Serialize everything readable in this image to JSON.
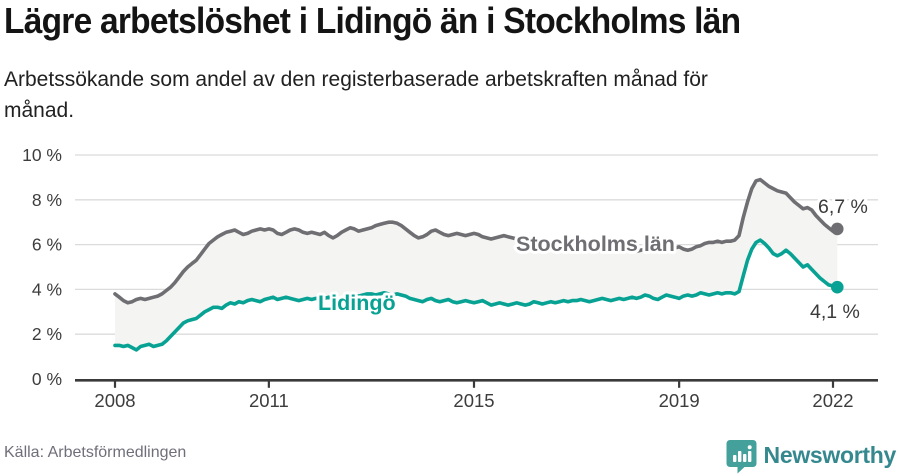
{
  "header": {
    "title": "Lägre arbetslöshet i Lidingö än i Stockholms län",
    "subtitle_lines": [
      "Arbetssökande som andel av den registerbaserade arbetskraften månad för",
      "månad."
    ]
  },
  "chart_data": {
    "type": "line",
    "x_start_year": 2008,
    "x_step_months": 1,
    "x_end": "2022-02",
    "ylim": [
      0,
      10
    ],
    "yticks": [
      0,
      2,
      4,
      6,
      8,
      10
    ],
    "y_tick_suffix": " %",
    "xticks": [
      2008,
      2011,
      2015,
      2019,
      2022
    ],
    "grid": "horizontal",
    "legend": "inline-labels-on-lines",
    "band_fill_between_series": true,
    "band_color": "#f4f4f2",
    "gridline_color": "#dbdbdb",
    "axis_color": "#3a3a3a",
    "series": [
      {
        "name": "Stockholms län",
        "color": "#6f6e72",
        "end_label": "6,7 %",
        "values": [
          3.8,
          3.65,
          3.5,
          3.4,
          3.45,
          3.55,
          3.6,
          3.55,
          3.6,
          3.65,
          3.7,
          3.8,
          3.95,
          4.1,
          4.3,
          4.55,
          4.8,
          5.0,
          5.15,
          5.3,
          5.55,
          5.8,
          6.05,
          6.2,
          6.35,
          6.45,
          6.55,
          6.6,
          6.65,
          6.55,
          6.45,
          6.5,
          6.6,
          6.65,
          6.7,
          6.65,
          6.7,
          6.65,
          6.5,
          6.45,
          6.55,
          6.65,
          6.7,
          6.65,
          6.55,
          6.5,
          6.55,
          6.5,
          6.45,
          6.55,
          6.4,
          6.3,
          6.4,
          6.55,
          6.65,
          6.75,
          6.7,
          6.6,
          6.65,
          6.7,
          6.75,
          6.85,
          6.9,
          6.95,
          7.0,
          7.0,
          6.95,
          6.85,
          6.7,
          6.55,
          6.4,
          6.3,
          6.35,
          6.45,
          6.6,
          6.65,
          6.55,
          6.45,
          6.4,
          6.45,
          6.5,
          6.45,
          6.4,
          6.45,
          6.5,
          6.45,
          6.35,
          6.3,
          6.25,
          6.3,
          6.35,
          6.4,
          6.35,
          6.3,
          6.25,
          6.2,
          6.15,
          6.1,
          6.05,
          6.0,
          5.95,
          5.9,
          5.95,
          6.0,
          5.95,
          5.9,
          5.85,
          5.8,
          5.8,
          5.75,
          5.7,
          5.75,
          5.8,
          5.75,
          5.7,
          5.75,
          5.8,
          5.75,
          5.7,
          5.75,
          5.8,
          5.75,
          5.7,
          5.75,
          5.8,
          5.85,
          5.8,
          5.75,
          5.8,
          5.85,
          5.9,
          5.85,
          5.9,
          5.8,
          5.75,
          5.8,
          5.9,
          5.95,
          6.05,
          6.1,
          6.1,
          6.15,
          6.1,
          6.15,
          6.15,
          6.2,
          6.4,
          7.2,
          7.9,
          8.5,
          8.85,
          8.9,
          8.75,
          8.6,
          8.5,
          8.4,
          8.35,
          8.3,
          8.1,
          7.9,
          7.75,
          7.6,
          7.65,
          7.55,
          7.3,
          7.1,
          6.9,
          6.75,
          6.6,
          6.7
        ]
      },
      {
        "name": "Lidingö",
        "color": "#07a293",
        "end_label": "4,1 %",
        "values": [
          1.5,
          1.5,
          1.45,
          1.5,
          1.4,
          1.3,
          1.45,
          1.5,
          1.55,
          1.45,
          1.5,
          1.55,
          1.7,
          1.9,
          2.1,
          2.3,
          2.5,
          2.6,
          2.65,
          2.7,
          2.85,
          3.0,
          3.1,
          3.2,
          3.2,
          3.15,
          3.3,
          3.4,
          3.35,
          3.45,
          3.4,
          3.5,
          3.55,
          3.5,
          3.45,
          3.55,
          3.6,
          3.65,
          3.55,
          3.6,
          3.65,
          3.6,
          3.55,
          3.5,
          3.55,
          3.6,
          3.55,
          3.6,
          3.55,
          3.6,
          3.65,
          3.6,
          3.55,
          3.6,
          3.65,
          3.7,
          3.75,
          3.7,
          3.75,
          3.8,
          3.8,
          3.75,
          3.8,
          3.85,
          3.8,
          3.75,
          3.8,
          3.75,
          3.7,
          3.6,
          3.55,
          3.5,
          3.45,
          3.55,
          3.6,
          3.5,
          3.45,
          3.5,
          3.55,
          3.45,
          3.4,
          3.45,
          3.5,
          3.45,
          3.4,
          3.45,
          3.5,
          3.4,
          3.3,
          3.35,
          3.4,
          3.35,
          3.3,
          3.35,
          3.4,
          3.35,
          3.3,
          3.35,
          3.45,
          3.4,
          3.35,
          3.4,
          3.45,
          3.4,
          3.45,
          3.5,
          3.45,
          3.5,
          3.5,
          3.55,
          3.5,
          3.45,
          3.5,
          3.55,
          3.6,
          3.55,
          3.5,
          3.55,
          3.6,
          3.55,
          3.6,
          3.65,
          3.6,
          3.65,
          3.75,
          3.7,
          3.6,
          3.55,
          3.65,
          3.75,
          3.7,
          3.65,
          3.6,
          3.7,
          3.75,
          3.7,
          3.75,
          3.85,
          3.8,
          3.75,
          3.8,
          3.85,
          3.8,
          3.85,
          3.85,
          3.8,
          3.9,
          4.6,
          5.3,
          5.8,
          6.1,
          6.2,
          6.05,
          5.85,
          5.6,
          5.5,
          5.6,
          5.75,
          5.6,
          5.4,
          5.2,
          5.0,
          5.1,
          4.9,
          4.7,
          4.5,
          4.35,
          4.2,
          4.15,
          4.1
        ]
      }
    ]
  },
  "footer": {
    "source": "Källa: Arbetsförmedlingen",
    "logo_text": "Newsworthy",
    "logo_icon_color": "#44a09b"
  }
}
